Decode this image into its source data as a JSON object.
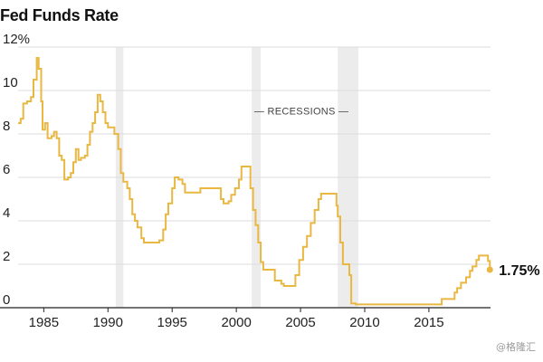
{
  "title": "Fed Funds Rate",
  "watermark": "@格隆汇",
  "colors": {
    "line": "#e8b843",
    "recession": "#ececec",
    "grid": "#dcdcdc",
    "axis": "#222222",
    "text": "#222222"
  },
  "chart_data": {
    "type": "line",
    "title": "Fed Funds Rate",
    "xlabel": "",
    "ylabel": "",
    "xlim": [
      1983.0,
      2019.8
    ],
    "ylim": [
      0,
      12
    ],
    "x_ticks": [
      1985,
      1990,
      1995,
      2000,
      2005,
      2010,
      2015
    ],
    "x_tick_labels": [
      "1985",
      "1990",
      "1995",
      "2000",
      "2005",
      "2010",
      "2015"
    ],
    "y_ticks": [
      0,
      2,
      4,
      6,
      8,
      10,
      12
    ],
    "y_tick_labels": [
      "0",
      "2",
      "4",
      "6",
      "8",
      "10",
      "12%"
    ],
    "grid": "horizontal",
    "recessions": [
      [
        1990.6,
        1991.2
      ],
      [
        2001.2,
        2001.9
      ],
      [
        2007.9,
        2009.5
      ]
    ],
    "recession_label": "— RECESSIONS —",
    "end_label": "1.75%",
    "end_value": 1.75,
    "series": [
      {
        "points": [
          [
            1983.0,
            8.5
          ],
          [
            1983.2,
            8.7
          ],
          [
            1983.4,
            9.4
          ],
          [
            1983.7,
            9.5
          ],
          [
            1984.0,
            9.7
          ],
          [
            1984.2,
            10.5
          ],
          [
            1984.45,
            11.5
          ],
          [
            1984.6,
            11.0
          ],
          [
            1984.8,
            9.5
          ],
          [
            1984.9,
            8.2
          ],
          [
            1985.1,
            8.5
          ],
          [
            1985.3,
            7.8
          ],
          [
            1985.6,
            7.9
          ],
          [
            1985.8,
            8.1
          ],
          [
            1986.0,
            7.8
          ],
          [
            1986.2,
            7.0
          ],
          [
            1986.4,
            6.8
          ],
          [
            1986.6,
            5.9
          ],
          [
            1986.9,
            6.0
          ],
          [
            1987.1,
            6.2
          ],
          [
            1987.3,
            6.7
          ],
          [
            1987.5,
            7.3
          ],
          [
            1987.7,
            6.8
          ],
          [
            1987.9,
            6.9
          ],
          [
            1988.2,
            7.0
          ],
          [
            1988.4,
            7.5
          ],
          [
            1988.6,
            8.1
          ],
          [
            1988.8,
            8.5
          ],
          [
            1989.0,
            9.0
          ],
          [
            1989.2,
            9.8
          ],
          [
            1989.4,
            9.5
          ],
          [
            1989.6,
            9.0
          ],
          [
            1989.8,
            8.5
          ],
          [
            1990.0,
            8.3
          ],
          [
            1990.5,
            8.0
          ],
          [
            1990.8,
            7.3
          ],
          [
            1991.0,
            6.2
          ],
          [
            1991.2,
            5.8
          ],
          [
            1991.5,
            5.5
          ],
          [
            1991.7,
            5.0
          ],
          [
            1991.9,
            4.3
          ],
          [
            1992.1,
            4.0
          ],
          [
            1992.3,
            3.7
          ],
          [
            1992.6,
            3.2
          ],
          [
            1992.8,
            3.0
          ],
          [
            1993.5,
            3.0
          ],
          [
            1994.0,
            3.1
          ],
          [
            1994.3,
            3.6
          ],
          [
            1994.5,
            4.3
          ],
          [
            1994.7,
            4.8
          ],
          [
            1995.0,
            5.5
          ],
          [
            1995.2,
            6.0
          ],
          [
            1995.5,
            5.9
          ],
          [
            1995.8,
            5.7
          ],
          [
            1996.0,
            5.3
          ],
          [
            1996.5,
            5.3
          ],
          [
            1997.0,
            5.3
          ],
          [
            1997.2,
            5.5
          ],
          [
            1997.8,
            5.5
          ],
          [
            1998.5,
            5.5
          ],
          [
            1998.8,
            5.0
          ],
          [
            1999.0,
            4.8
          ],
          [
            1999.4,
            4.9
          ],
          [
            1999.6,
            5.2
          ],
          [
            1999.9,
            5.5
          ],
          [
            2000.2,
            5.9
          ],
          [
            2000.4,
            6.5
          ],
          [
            2000.9,
            6.5
          ],
          [
            2001.1,
            5.5
          ],
          [
            2001.3,
            4.5
          ],
          [
            2001.5,
            3.8
          ],
          [
            2001.7,
            3.0
          ],
          [
            2001.9,
            2.1
          ],
          [
            2002.1,
            1.75
          ],
          [
            2002.9,
            1.75
          ],
          [
            2003.0,
            1.25
          ],
          [
            2003.5,
            1.1
          ],
          [
            2003.7,
            1.0
          ],
          [
            2004.4,
            1.0
          ],
          [
            2004.6,
            1.5
          ],
          [
            2004.9,
            2.2
          ],
          [
            2005.2,
            2.8
          ],
          [
            2005.5,
            3.3
          ],
          [
            2005.8,
            3.9
          ],
          [
            2006.1,
            4.5
          ],
          [
            2006.4,
            5.0
          ],
          [
            2006.6,
            5.25
          ],
          [
            2007.6,
            5.25
          ],
          [
            2007.8,
            4.7
          ],
          [
            2007.9,
            4.2
          ],
          [
            2008.1,
            3.0
          ],
          [
            2008.3,
            2.0
          ],
          [
            2008.7,
            2.0
          ],
          [
            2008.8,
            1.5
          ],
          [
            2008.95,
            0.2
          ],
          [
            2009.3,
            0.15
          ],
          [
            2015.9,
            0.15
          ],
          [
            2016.0,
            0.4
          ],
          [
            2016.9,
            0.4
          ],
          [
            2017.0,
            0.7
          ],
          [
            2017.2,
            0.9
          ],
          [
            2017.5,
            1.15
          ],
          [
            2017.9,
            1.4
          ],
          [
            2018.2,
            1.7
          ],
          [
            2018.4,
            1.9
          ],
          [
            2018.7,
            2.2
          ],
          [
            2018.9,
            2.4
          ],
          [
            2019.5,
            2.4
          ],
          [
            2019.6,
            2.15
          ],
          [
            2019.75,
            1.75
          ]
        ]
      }
    ]
  }
}
